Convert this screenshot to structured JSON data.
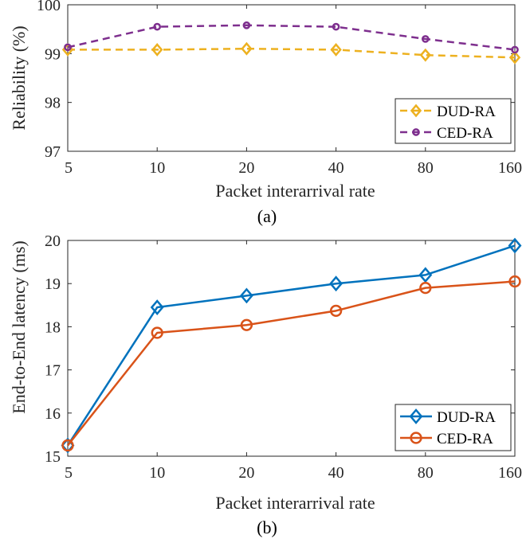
{
  "chart_data": [
    {
      "type": "line",
      "categories": [
        "5",
        "10",
        "20",
        "40",
        "80",
        "160"
      ],
      "xlabel": "Packet interarrival rate",
      "ylabel": "Reliability (%)",
      "caption": "(a)",
      "ylim": [
        97,
        100
      ],
      "yticks": [
        97,
        98,
        99,
        100
      ],
      "legend_position": "bottom-right",
      "series": [
        {
          "name": "DUD-RA",
          "values": [
            99.08,
            99.08,
            99.1,
            99.08,
            98.97,
            98.92
          ],
          "color": "#EDB120",
          "marker": "diamond",
          "line_style": "dashed"
        },
        {
          "name": "CED-RA",
          "values": [
            99.13,
            99.55,
            99.58,
            99.55,
            99.3,
            99.08
          ],
          "color": "#7E2F8E",
          "marker": "circle",
          "line_style": "dashed"
        }
      ]
    },
    {
      "type": "line",
      "categories": [
        "5",
        "10",
        "20",
        "40",
        "80",
        "160"
      ],
      "xlabel": "Packet interarrival rate",
      "ylabel": "End-to-End latency (ms)",
      "caption": "(b)",
      "ylim": [
        15,
        20
      ],
      "yticks": [
        15,
        16,
        17,
        18,
        19,
        20
      ],
      "legend_position": "bottom-right",
      "series": [
        {
          "name": "DUD-RA",
          "values": [
            15.25,
            18.45,
            18.72,
            19.0,
            19.2,
            19.88
          ],
          "color": "#0072BD",
          "marker": "diamond",
          "line_style": "solid"
        },
        {
          "name": "CED-RA",
          "values": [
            15.25,
            17.86,
            18.04,
            18.37,
            18.9,
            19.05
          ],
          "color": "#D95319",
          "marker": "circle",
          "line_style": "solid"
        }
      ]
    }
  ]
}
